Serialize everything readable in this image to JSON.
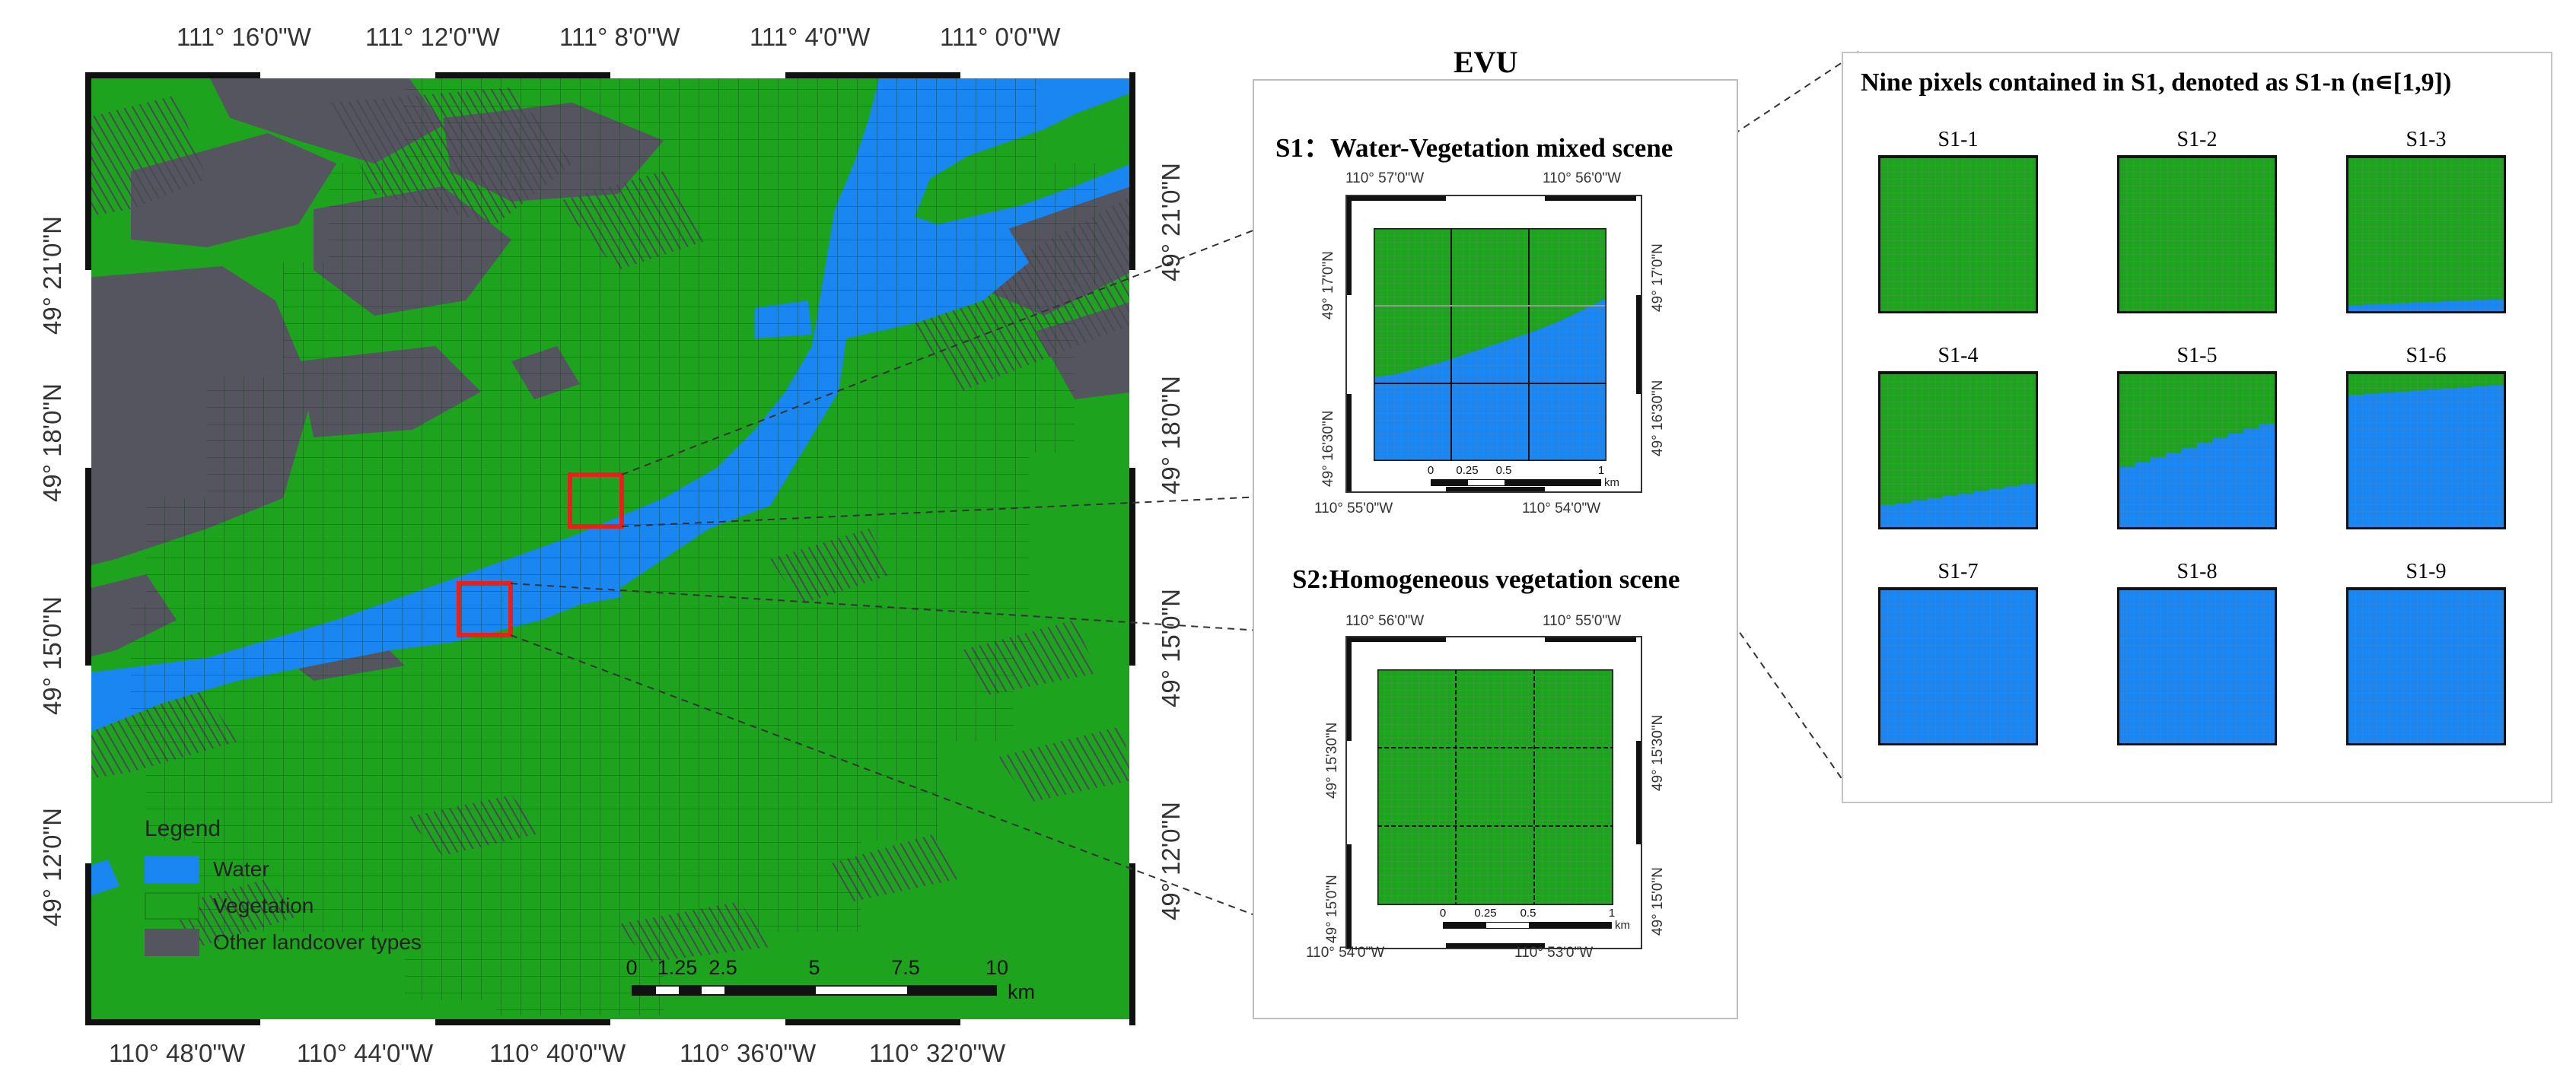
{
  "colors": {
    "water": "#1a86f2",
    "vegetation": "#1ea31e",
    "other": "#555560",
    "highlight": "#e8201c"
  },
  "main_map": {
    "top_labels": [
      "111°  16'0\"W",
      "111°  12'0\"W",
      "111°  8'0\"W",
      "111°  4'0\"W",
      "111°  0'0\"W"
    ],
    "bottom_labels": [
      "110°  48'0\"W",
      "110°  44'0\"W",
      "110°  40'0\"W",
      "110°  36'0\"W",
      "110°  32'0\"W"
    ],
    "left_labels": [
      "49°  21'0\"N",
      "49°  18'0\"N",
      "49°  15'0\"N",
      "49°  12'0\"N"
    ],
    "right_labels": [
      "49°  21'0\"N",
      "49°  18'0\"N",
      "49°  15'0\"N",
      "49°  12'0\"N"
    ],
    "legend": {
      "title": "Legend",
      "items": [
        {
          "label": "Water",
          "color_key": "water"
        },
        {
          "label": "Vegetation",
          "color_key": "vegetation"
        },
        {
          "label": "Other landcover types",
          "color_key": "other"
        }
      ]
    },
    "scale_bar": {
      "ticks": [
        "0",
        "1.25",
        "2.5",
        "5",
        "7.5",
        "10"
      ],
      "unit": "km"
    }
  },
  "evu_panel": {
    "title": "EVU",
    "s1": {
      "title": "S1：Water-Vegetation mixed scene",
      "top_labels": [
        "110°  57'0\"W",
        "110°  56'0\"W"
      ],
      "bottom_labels": [
        "110°  55'0\"W",
        "110°  54'0\"W"
      ],
      "left_labels": [
        "49°  17'0\"N",
        "49°  16'30\"N"
      ],
      "right_labels": [
        "49°  17'0\"N",
        "49°  16'30\"N"
      ],
      "scale_ticks": [
        "0",
        "0.25",
        "0.5",
        "1"
      ],
      "scale_unit": "km"
    },
    "s2": {
      "title": "S2:Homogeneous vegetation scene",
      "top_labels": [
        "110°  56'0\"W",
        "110°  55'0\"W"
      ],
      "bottom_labels": [
        "110°  54'0\"W",
        "110°  53'0\"W"
      ],
      "left_labels": [
        "49°  15'30\"N",
        "49°  15'0\"N"
      ],
      "right_labels": [
        "49°  15'30\"N",
        "49°  15'0\"N"
      ],
      "scale_ticks": [
        "0",
        "0.25",
        "0.5",
        "1"
      ],
      "scale_unit": "km"
    }
  },
  "pixels_panel": {
    "title": "Nine pixels contained in S1, denoted as S1-n (n∊[1,9])",
    "pixels": [
      {
        "label": "S1-1",
        "water_fraction": 0.0
      },
      {
        "label": "S1-2",
        "water_fraction": 0.0
      },
      {
        "label": "S1-3",
        "water_fraction": 0.06
      },
      {
        "label": "S1-4",
        "water_fraction": 0.22
      },
      {
        "label": "S1-5",
        "water_fraction": 0.55
      },
      {
        "label": "S1-6",
        "water_fraction": 0.9
      },
      {
        "label": "S1-7",
        "water_fraction": 1.0
      },
      {
        "label": "S1-8",
        "water_fraction": 1.0
      },
      {
        "label": "S1-9",
        "water_fraction": 1.0
      }
    ]
  }
}
